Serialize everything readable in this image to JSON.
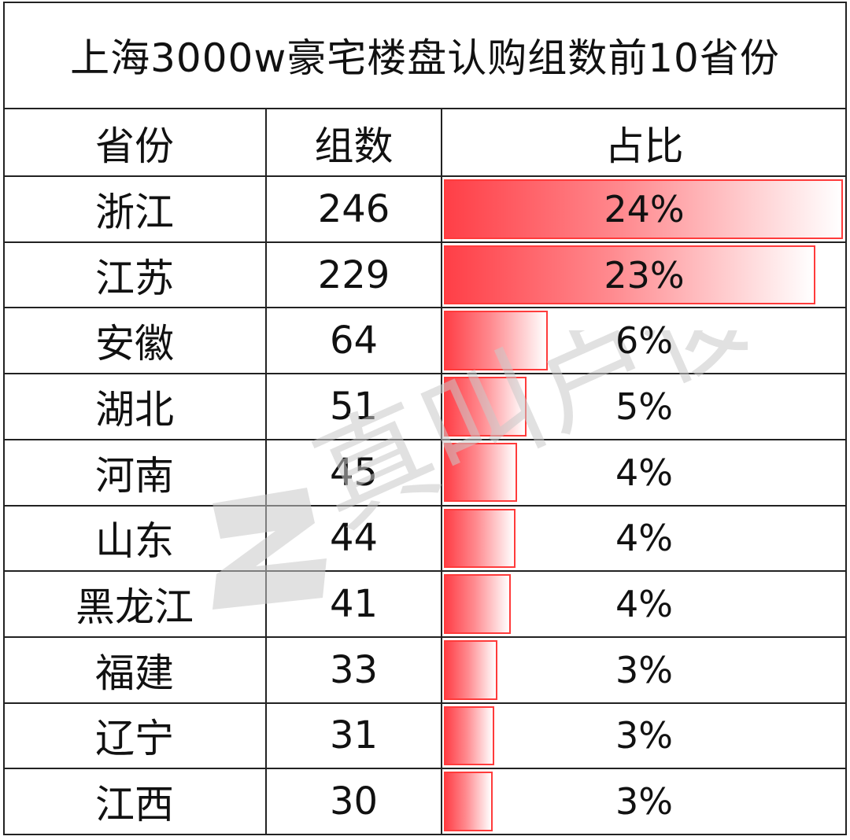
{
  "title": "上海3000w豪宅楼盘认购组数前10省份",
  "headers": {
    "province": "省份",
    "count": "组数",
    "share": "占比"
  },
  "rows": [
    {
      "province": "浙江",
      "count": "246",
      "share": "24%"
    },
    {
      "province": "江苏",
      "count": "229",
      "share": "23%"
    },
    {
      "province": "安徽",
      "count": "64",
      "share": "6%"
    },
    {
      "province": "湖北",
      "count": "51",
      "share": "5%"
    },
    {
      "province": "河南",
      "count": "45",
      "share": "4%"
    },
    {
      "province": "山东",
      "count": "44",
      "share": "4%"
    },
    {
      "province": "黑龙江",
      "count": "41",
      "share": "4%"
    },
    {
      "province": "福建",
      "count": "33",
      "share": "3%"
    },
    {
      "province": "辽宁",
      "count": "31",
      "share": "3%"
    },
    {
      "province": "江西",
      "count": "30",
      "share": "3%"
    }
  ],
  "chart_data": {
    "type": "table",
    "title": "上海3000w豪宅楼盘认购组数前10省份",
    "columns": [
      "省份",
      "组数",
      "占比"
    ],
    "categories": [
      "浙江",
      "江苏",
      "安徽",
      "湖北",
      "河南",
      "山东",
      "黑龙江",
      "福建",
      "辽宁",
      "江西"
    ],
    "series": [
      {
        "name": "组数",
        "values": [
          246,
          229,
          64,
          51,
          45,
          44,
          41,
          33,
          31,
          30
        ]
      },
      {
        "name": "占比",
        "values": [
          24,
          23,
          6,
          5,
          4,
          4,
          4,
          3,
          3,
          3
        ]
      }
    ],
    "databar_column": "占比",
    "databar_max": 246
  },
  "colors": {
    "bar_border": "#ff3b3b",
    "bar_start": "#ff3f47",
    "bar_end": "#ffffff",
    "grid": "#222222",
    "watermark": "#c9c9c9"
  },
  "watermark": {
    "icon": "z-logo-icon",
    "text": "真叫卢俊"
  }
}
